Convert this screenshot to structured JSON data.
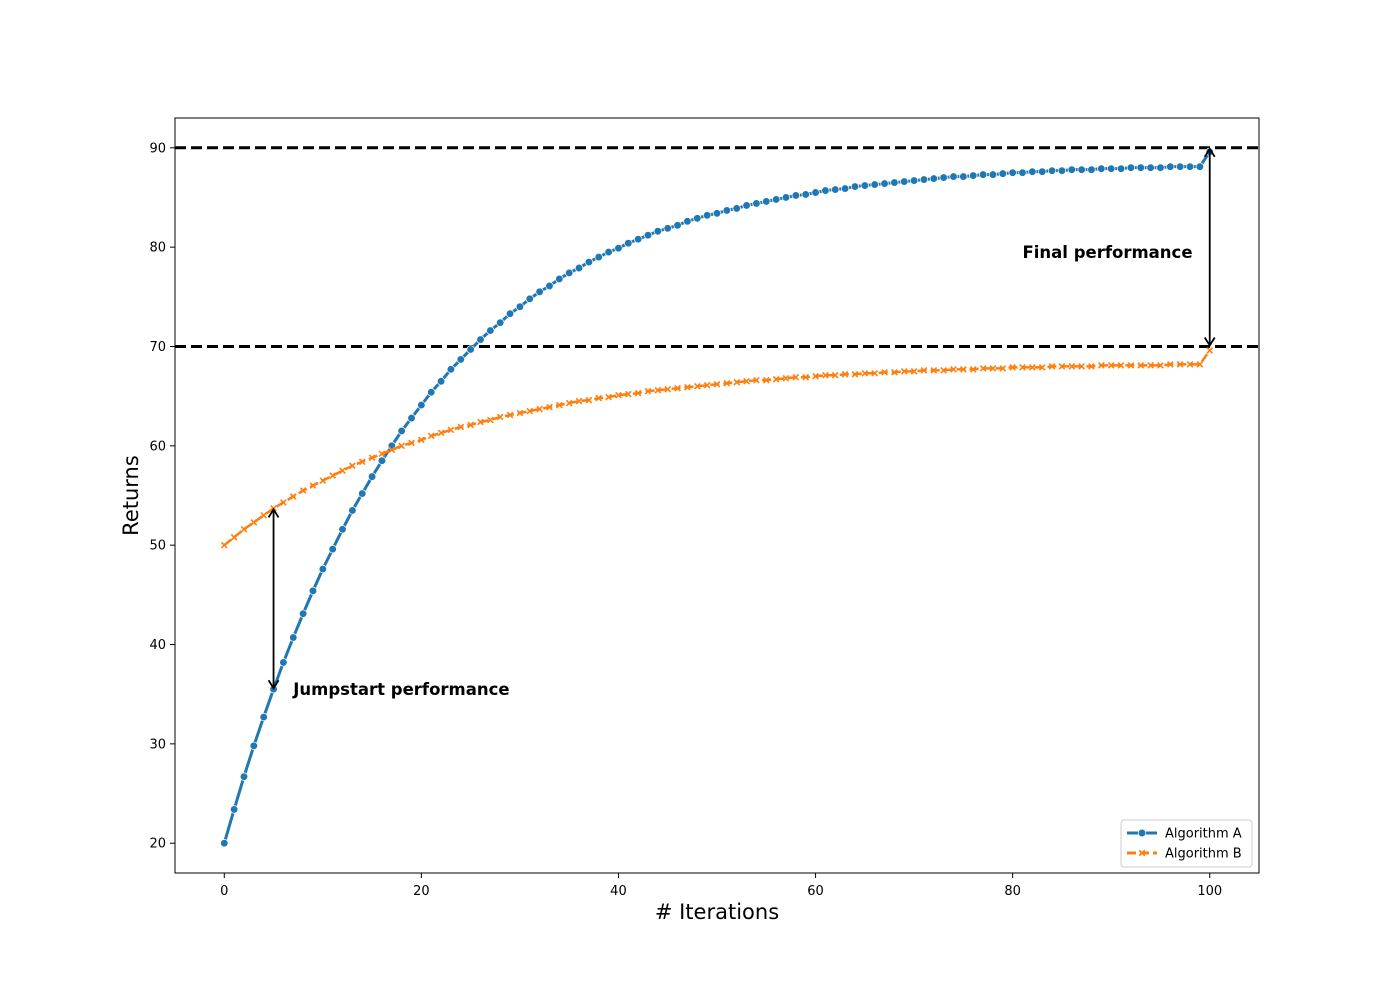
{
  "chart_data": {
    "type": "line",
    "title": "",
    "xlabel": "# Iterations",
    "ylabel": "Returns",
    "xlim": [
      -5,
      105
    ],
    "ylim": [
      17,
      93
    ],
    "xticks": [
      0,
      20,
      40,
      60,
      80,
      100
    ],
    "yticks": [
      20,
      30,
      40,
      50,
      60,
      70,
      80,
      90
    ],
    "grid": false,
    "legend_position": "lower-right",
    "series": [
      {
        "name": "Algorithm A",
        "color": "#1f77b4",
        "marker": "circle",
        "x": [
          0,
          1,
          2,
          3,
          4,
          5,
          6,
          7,
          8,
          9,
          10,
          11,
          12,
          13,
          14,
          15,
          16,
          17,
          18,
          19,
          20,
          21,
          22,
          23,
          24,
          25,
          26,
          27,
          28,
          29,
          30,
          31,
          32,
          33,
          34,
          35,
          36,
          37,
          38,
          39,
          40,
          41,
          42,
          43,
          44,
          45,
          46,
          47,
          48,
          49,
          50,
          51,
          52,
          53,
          54,
          55,
          56,
          57,
          58,
          59,
          60,
          61,
          62,
          63,
          64,
          65,
          66,
          67,
          68,
          69,
          70,
          71,
          72,
          73,
          74,
          75,
          76,
          77,
          78,
          79,
          80,
          81,
          82,
          83,
          84,
          85,
          86,
          87,
          88,
          89,
          90,
          91,
          92,
          93,
          94,
          95,
          96,
          97,
          98,
          99,
          100
        ],
        "y": [
          20.0,
          23.4,
          26.7,
          29.8,
          32.7,
          35.5,
          38.2,
          40.7,
          43.1,
          45.4,
          47.6,
          49.6,
          51.6,
          53.5,
          55.2,
          56.9,
          58.5,
          60.0,
          61.5,
          62.8,
          64.1,
          65.4,
          66.5,
          67.7,
          68.7,
          69.7,
          70.7,
          71.6,
          72.4,
          73.3,
          74.0,
          74.8,
          75.5,
          76.1,
          76.8,
          77.4,
          77.9,
          78.5,
          79.0,
          79.5,
          79.9,
          80.4,
          80.8,
          81.2,
          81.6,
          81.9,
          82.2,
          82.6,
          82.9,
          83.2,
          83.4,
          83.7,
          83.9,
          84.2,
          84.4,
          84.6,
          84.8,
          85.0,
          85.2,
          85.3,
          85.5,
          85.7,
          85.8,
          85.9,
          86.1,
          86.2,
          86.3,
          86.4,
          86.5,
          86.6,
          86.7,
          86.8,
          86.9,
          87.0,
          87.1,
          87.1,
          87.2,
          87.3,
          87.3,
          87.4,
          87.5,
          87.5,
          87.6,
          87.6,
          87.7,
          87.7,
          87.8,
          87.8,
          87.8,
          87.9,
          87.9,
          87.9,
          88.0,
          88.0,
          88.0,
          88.0,
          88.1,
          88.1,
          88.1,
          88.1,
          89.6
        ]
      },
      {
        "name": "Algorithm B",
        "color": "#ff7f0e",
        "marker": "x",
        "x": [
          0,
          1,
          2,
          3,
          4,
          5,
          6,
          7,
          8,
          9,
          10,
          11,
          12,
          13,
          14,
          15,
          16,
          17,
          18,
          19,
          20,
          21,
          22,
          23,
          24,
          25,
          26,
          27,
          28,
          29,
          30,
          31,
          32,
          33,
          34,
          35,
          36,
          37,
          38,
          39,
          40,
          41,
          42,
          43,
          44,
          45,
          46,
          47,
          48,
          49,
          50,
          51,
          52,
          53,
          54,
          55,
          56,
          57,
          58,
          59,
          60,
          61,
          62,
          63,
          64,
          65,
          66,
          67,
          68,
          69,
          70,
          71,
          72,
          73,
          74,
          75,
          76,
          77,
          78,
          79,
          80,
          81,
          82,
          83,
          84,
          85,
          86,
          87,
          88,
          89,
          90,
          91,
          92,
          93,
          94,
          95,
          96,
          97,
          98,
          99,
          100
        ],
        "y": [
          50.0,
          50.8,
          51.6,
          52.3,
          53.0,
          53.7,
          54.3,
          54.9,
          55.5,
          56.0,
          56.5,
          57.0,
          57.5,
          58.0,
          58.4,
          58.8,
          59.2,
          59.6,
          60.0,
          60.3,
          60.6,
          61.0,
          61.3,
          61.6,
          61.9,
          62.1,
          62.4,
          62.6,
          62.9,
          63.1,
          63.3,
          63.5,
          63.7,
          63.9,
          64.1,
          64.3,
          64.5,
          64.6,
          64.8,
          64.9,
          65.1,
          65.2,
          65.3,
          65.5,
          65.6,
          65.7,
          65.8,
          65.9,
          66.0,
          66.1,
          66.2,
          66.3,
          66.4,
          66.5,
          66.6,
          66.6,
          66.7,
          66.8,
          66.9,
          66.9,
          67.0,
          67.1,
          67.1,
          67.2,
          67.2,
          67.3,
          67.3,
          67.4,
          67.4,
          67.5,
          67.5,
          67.6,
          67.6,
          67.6,
          67.7,
          67.7,
          67.7,
          67.8,
          67.8,
          67.8,
          67.9,
          67.9,
          67.9,
          67.9,
          68.0,
          68.0,
          68.0,
          68.0,
          68.0,
          68.1,
          68.1,
          68.1,
          68.1,
          68.1,
          68.1,
          68.1,
          68.2,
          68.2,
          68.2,
          68.2,
          69.6
        ]
      }
    ],
    "reference_lines": [
      {
        "orientation": "horizontal",
        "y": 90,
        "style": "dashed",
        "color": "#000000"
      },
      {
        "orientation": "horizontal",
        "y": 70,
        "style": "dashed",
        "color": "#000000"
      }
    ],
    "annotations": [
      {
        "text": "Final performance",
        "arrow_x": 100,
        "arrow_y_from": 70,
        "arrow_y_to": 90,
        "text_x": 81,
        "text_y": 79.5
      },
      {
        "text": "Jumpstart performance",
        "arrow_x": 5,
        "arrow_y_from": 53.7,
        "arrow_y_to": 35.5,
        "text_x": 7,
        "text_y": 35.5
      }
    ]
  }
}
